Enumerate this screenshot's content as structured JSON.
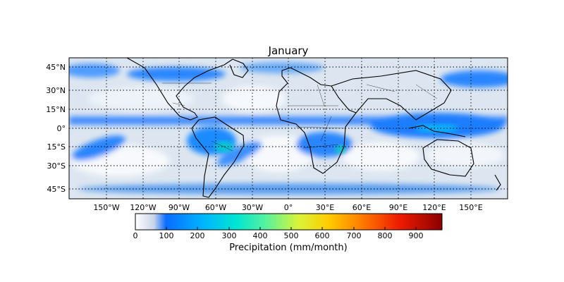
{
  "title": "January",
  "map": {
    "lon_range": [
      -180,
      180
    ],
    "lat_range": [
      -52,
      52
    ],
    "lon_ticks": [
      "150°W",
      "120°W",
      "90°W",
      "60°W",
      "30°W",
      "0°",
      "30°E",
      "60°E",
      "90°E",
      "120°E",
      "150°E"
    ],
    "lat_ticks": [
      "45°N",
      "30°N",
      "15°N",
      "0°",
      "15°S",
      "30°S",
      "45°S"
    ],
    "grid": "dotted"
  },
  "colorbar": {
    "label": "Precipitation (mm/month)",
    "ticks": [
      "0",
      "100",
      "200",
      "300",
      "400",
      "500",
      "600",
      "700",
      "800",
      "900"
    ],
    "range": [
      0,
      980
    ]
  }
}
